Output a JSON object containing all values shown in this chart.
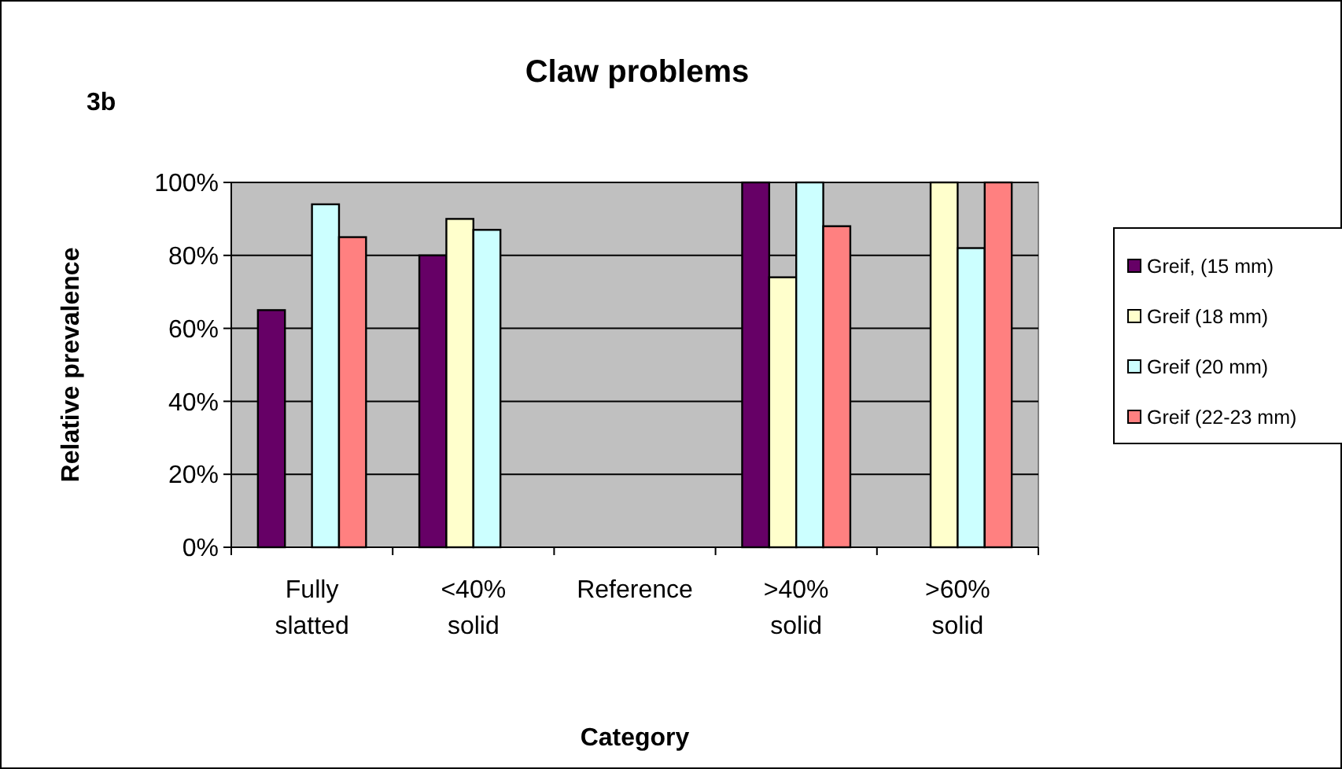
{
  "chart_data": {
    "type": "bar",
    "title": "Claw problems",
    "annotations": [
      "3b"
    ],
    "xlabel": "Category",
    "ylabel": "Relative prevalence",
    "categories": [
      "Fully\nslatted",
      "<40%\nsolid",
      "Reference",
      ">40%\nsolid",
      ">60%\nsolid"
    ],
    "series": [
      {
        "name": "Greif, (15 mm)",
        "color": "#660066",
        "values": [
          65,
          80,
          null,
          100,
          null
        ]
      },
      {
        "name": "Greif (18 mm)",
        "color": "#ffffcc",
        "values": [
          null,
          90,
          null,
          74,
          100
        ]
      },
      {
        "name": "Greif (20 mm)",
        "color": "#ccffff",
        "values": [
          94,
          87,
          null,
          100,
          82
        ]
      },
      {
        "name": "Greif (22-23 mm)",
        "color": "#ff8080",
        "values": [
          85,
          null,
          null,
          88,
          100
        ]
      }
    ],
    "ylim": [
      0,
      100
    ],
    "yticks": [
      {
        "value": 0,
        "label": "0%"
      },
      {
        "value": 20,
        "label": "20%"
      },
      {
        "value": 40,
        "label": "40%"
      },
      {
        "value": 60,
        "label": "60%"
      },
      {
        "value": 80,
        "label": "80%"
      },
      {
        "value": 100,
        "label": "100%"
      }
    ],
    "grid": "y",
    "legend": "right"
  }
}
